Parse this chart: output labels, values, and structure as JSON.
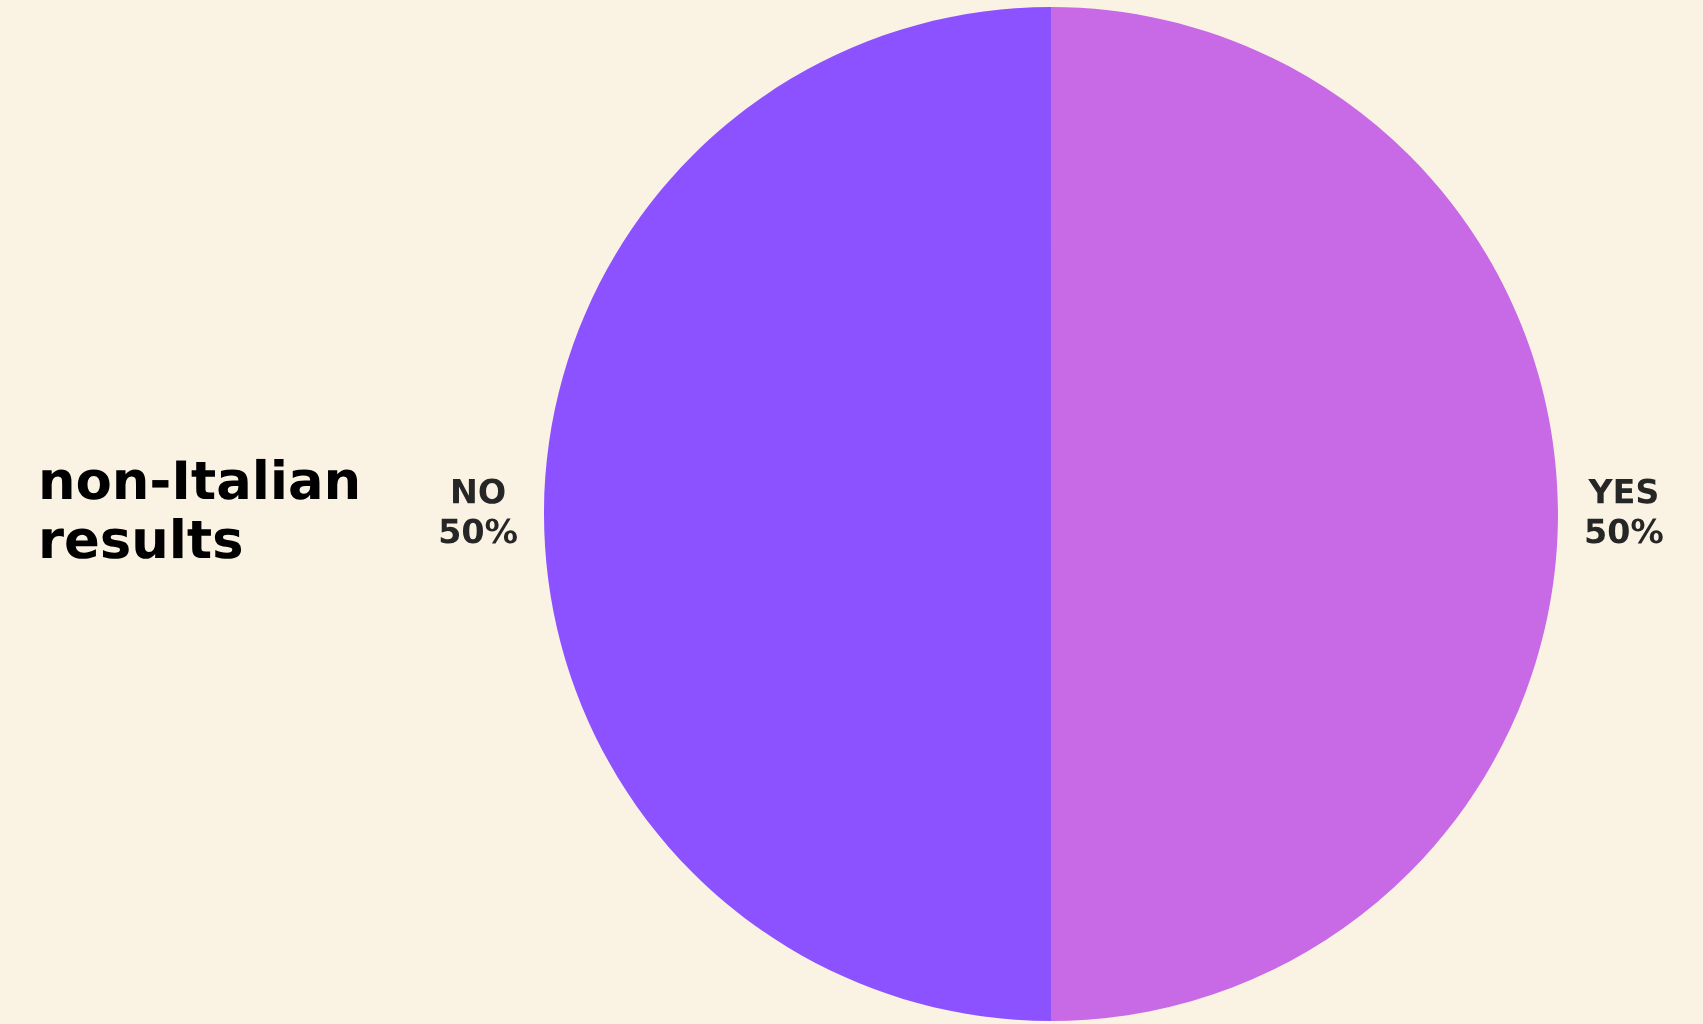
{
  "chart_data": {
    "type": "pie",
    "title": "non-Italian results",
    "categories": [
      "YES",
      "NO"
    ],
    "values": [
      50,
      50
    ],
    "colors": [
      "#c86ae6",
      "#8c52ff"
    ],
    "value_labels": [
      "50%",
      "50%"
    ]
  }
}
